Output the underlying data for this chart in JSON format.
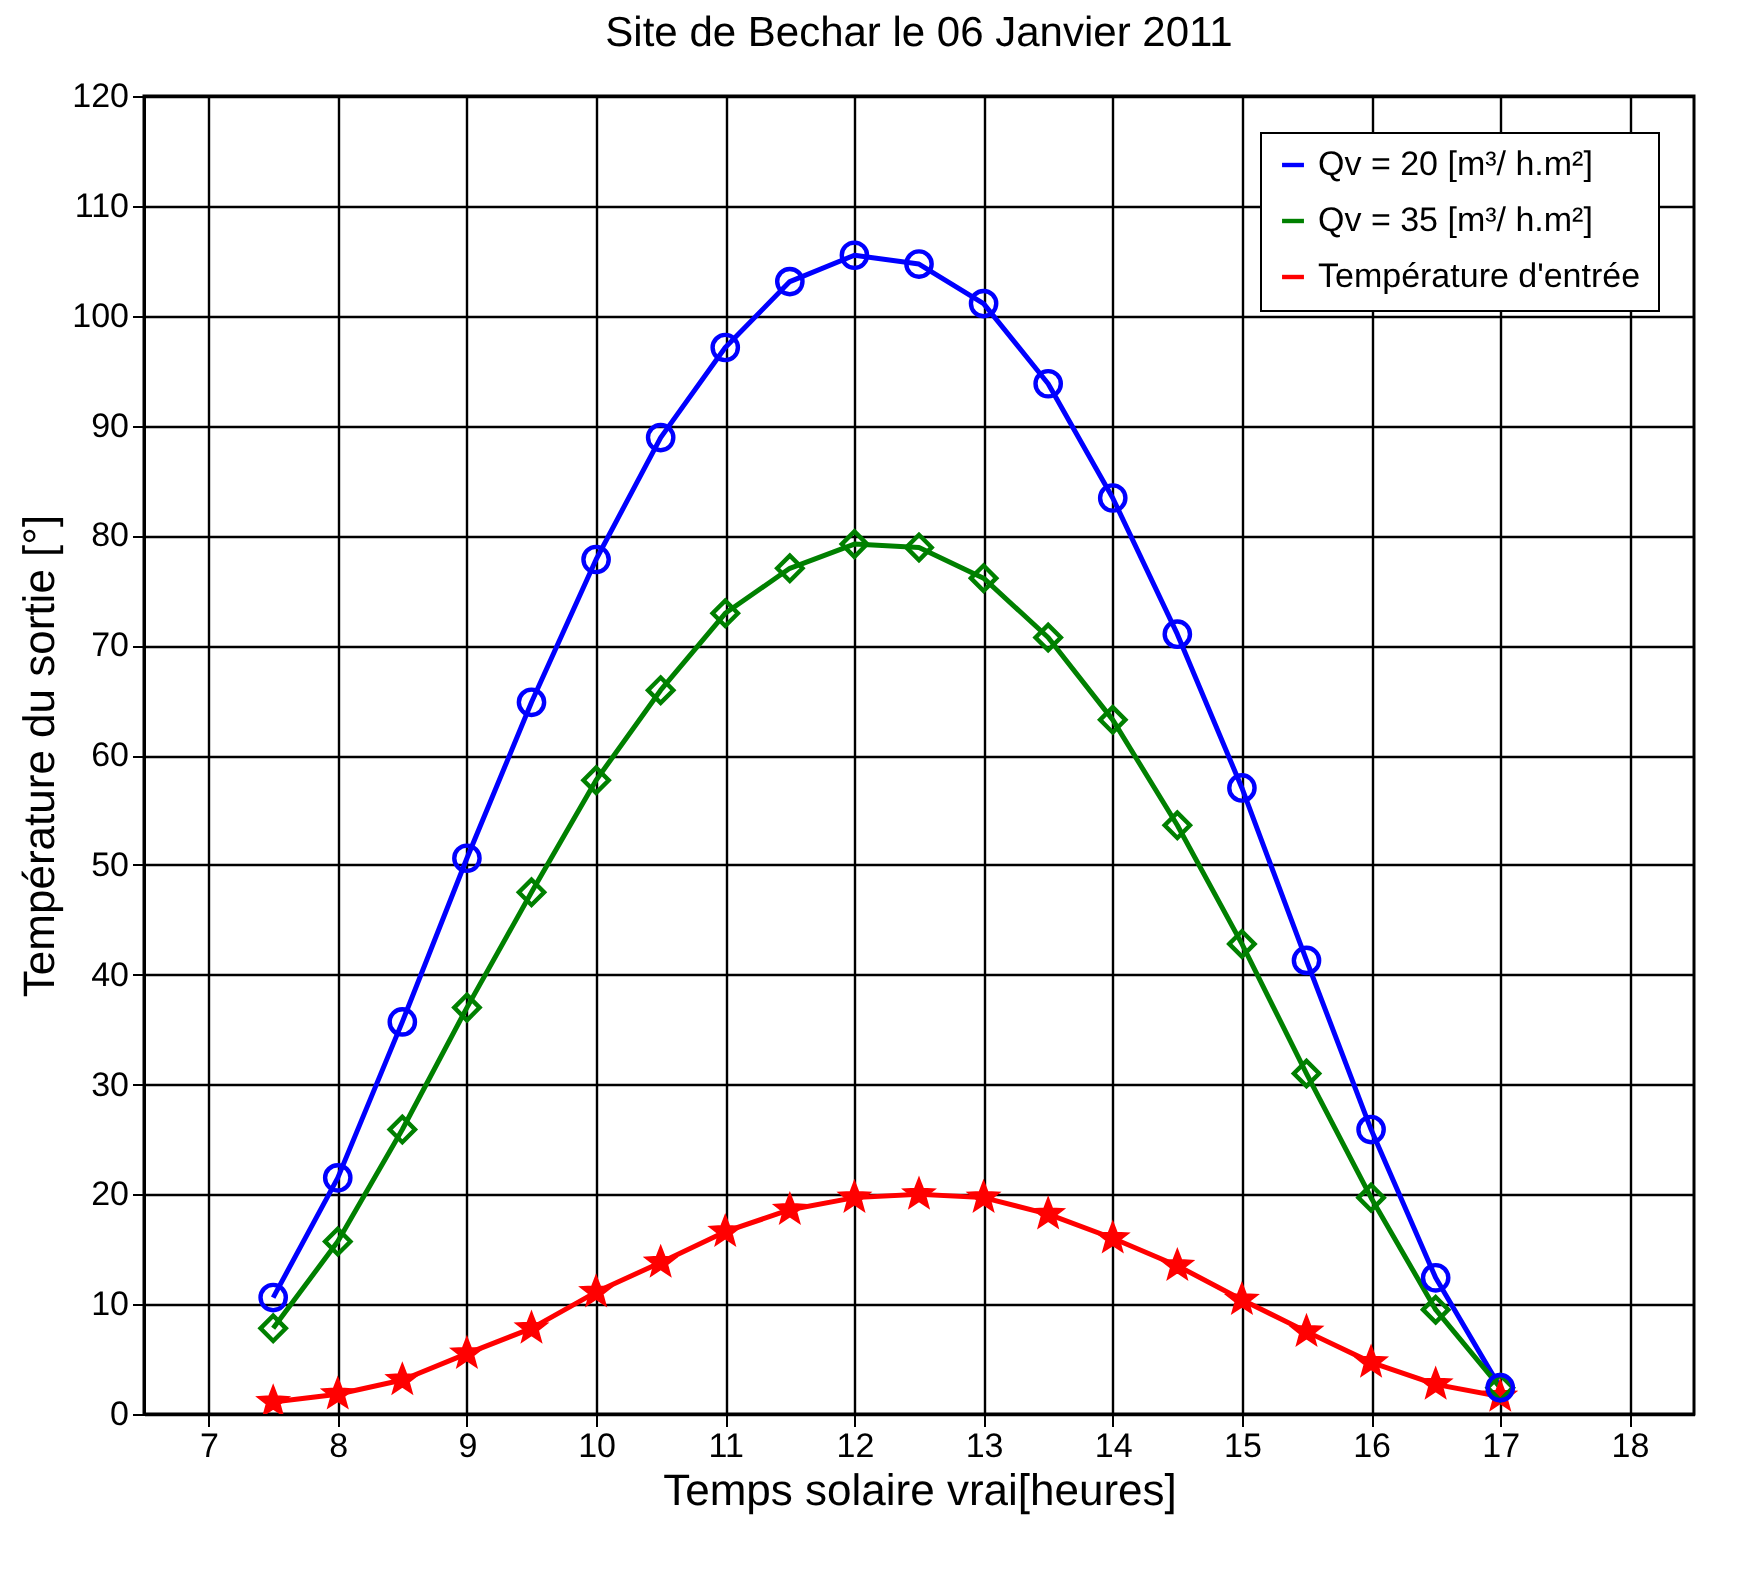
{
  "chart_data": {
    "type": "line",
    "title": "Site de Bechar le 06 Janvier 2011",
    "xlabel": "Temps solaire vrai[heures]",
    "ylabel": "Température du sortie [°]",
    "x": [
      7.5,
      8,
      8.5,
      9,
      9.5,
      10,
      10.5,
      11,
      11.5,
      12,
      12.5,
      13,
      13.5,
      14,
      14.5,
      15,
      15.5,
      16,
      16.5,
      17
    ],
    "series": [
      {
        "name": "Qv = 20 [m³/ h.m²]",
        "color": "#0000ff",
        "marker": "circle",
        "values": [
          10.6,
          21.5,
          35.7,
          50.6,
          64.8,
          77.8,
          88.9,
          97.1,
          103.1,
          105.5,
          104.7,
          101.1,
          93.8,
          83.4,
          71.0,
          57.0,
          41.3,
          25.9,
          12.4,
          2.4
        ]
      },
      {
        "name": "Qv = 35 [m³/ h.m²]",
        "color": "#008000",
        "marker": "diamond",
        "values": [
          7.8,
          15.7,
          25.9,
          37.0,
          47.5,
          57.7,
          65.9,
          72.9,
          77.0,
          79.2,
          78.9,
          76.1,
          70.7,
          63.2,
          53.6,
          42.8,
          31.0,
          19.7,
          9.5,
          2.4
        ]
      },
      {
        "name": "Température d'entrée",
        "color": "#ff0000",
        "marker": "star",
        "values": [
          1.1,
          1.8,
          3.1,
          5.5,
          7.8,
          11.1,
          13.8,
          16.6,
          18.6,
          19.7,
          20.0,
          19.7,
          18.2,
          16.0,
          13.5,
          10.4,
          7.5,
          4.7,
          2.7,
          1.6
        ]
      }
    ],
    "xlim": [
      6.5,
      18.5
    ],
    "xticks": [
      7,
      8,
      9,
      10,
      11,
      12,
      13,
      14,
      15,
      16,
      17,
      18
    ],
    "ylim": [
      0,
      120
    ],
    "yticks": [
      0,
      10,
      20,
      30,
      40,
      50,
      60,
      70,
      80,
      90,
      100,
      110,
      120
    ],
    "grid": true,
    "legend": "top right"
  }
}
